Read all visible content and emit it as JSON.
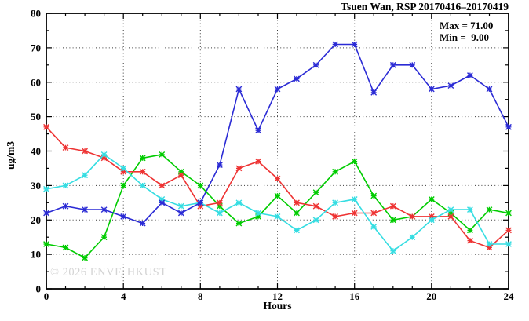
{
  "chart_data": {
    "type": "line",
    "title": "Tsuen Wan, RSP 20170416–20170419",
    "annotation": {
      "max_label": "Max = 71.00",
      "min_label": "Min =  9.00"
    },
    "watermark": "© 2026 ENVF, HKUST",
    "xlabel": "Hours",
    "ylabel": "ug/m3",
    "xlim": [
      0,
      24
    ],
    "ylim": [
      0,
      80
    ],
    "x_major_ticks": [
      0,
      4,
      8,
      12,
      16,
      20,
      24
    ],
    "x_minor_step": 1,
    "y_major_ticks": [
      0,
      10,
      20,
      30,
      40,
      50,
      60,
      70,
      80
    ],
    "y_minor_step": 5,
    "grid": true,
    "legend": "none",
    "x": [
      0,
      1,
      2,
      3,
      4,
      5,
      6,
      7,
      8,
      9,
      10,
      11,
      12,
      13,
      14,
      15,
      16,
      17,
      18,
      19,
      20,
      21,
      22,
      23,
      24
    ],
    "series": [
      {
        "name": "green",
        "color": "#00cc00",
        "values": [
          13,
          12,
          9,
          15,
          30,
          38,
          39,
          34,
          30,
          24,
          19,
          21,
          27,
          22,
          28,
          34,
          37,
          27,
          20,
          21,
          26,
          22,
          17,
          23,
          22
        ]
      },
      {
        "name": "red",
        "color": "#ee3333",
        "values": [
          47,
          41,
          40,
          38,
          34,
          34,
          30,
          33,
          24,
          25,
          35,
          37,
          32,
          25,
          24,
          21,
          22,
          22,
          24,
          21,
          21,
          21,
          14,
          12,
          17
        ]
      },
      {
        "name": "cyan",
        "color": "#35dde2",
        "values": [
          29,
          30,
          33,
          39,
          35,
          30,
          26,
          24,
          25,
          22,
          25,
          22,
          21,
          17,
          20,
          25,
          26,
          18,
          11,
          15,
          20,
          23,
          23,
          13,
          13
        ]
      },
      {
        "name": "blue",
        "color": "#2b2bd5",
        "values": [
          22,
          24,
          23,
          23,
          21,
          19,
          25,
          22,
          25,
          36,
          58,
          46,
          58,
          61,
          65,
          71,
          71,
          57,
          65,
          65,
          58,
          59,
          62,
          58,
          47
        ]
      }
    ]
  }
}
